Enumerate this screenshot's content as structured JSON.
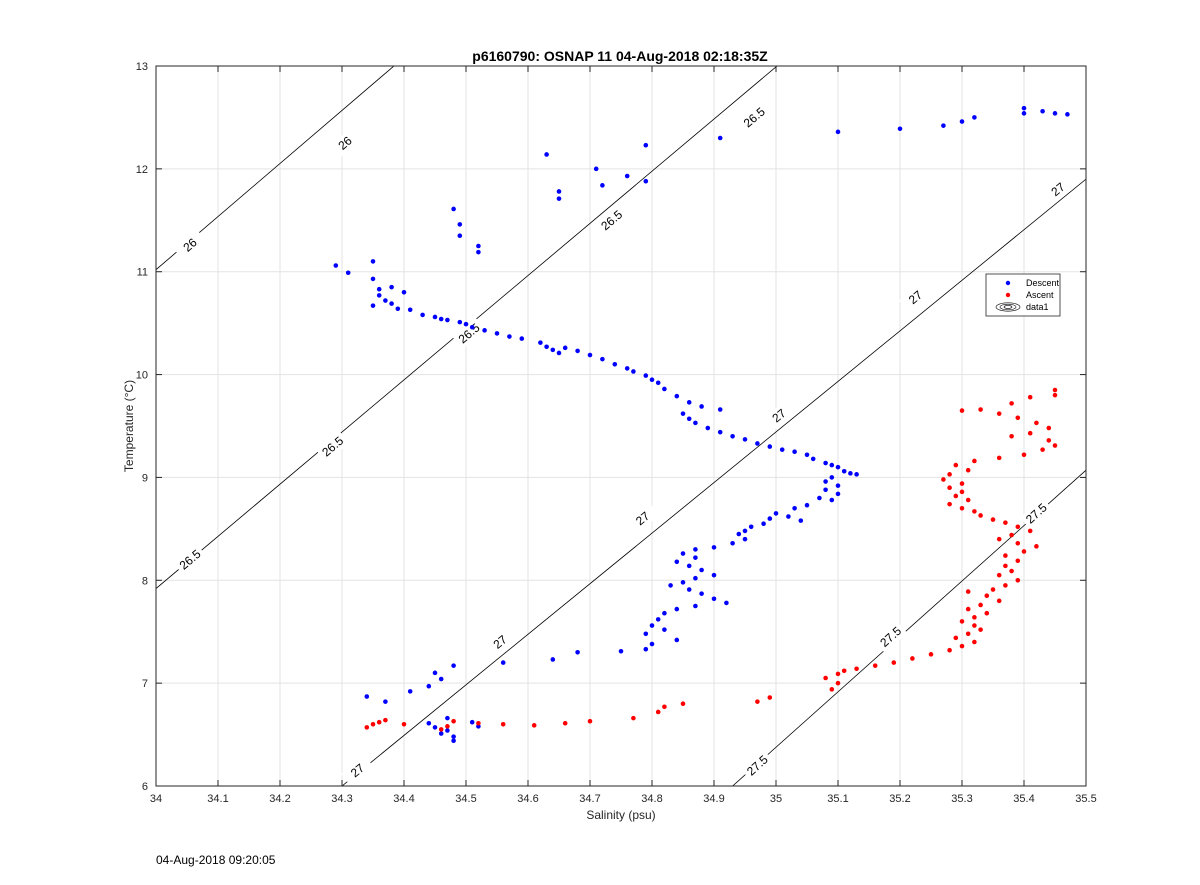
{
  "figure": {
    "title": "p6160790: OSNAP 11 04-Aug-2018 02:18:35Z",
    "timestamp": "04-Aug-2018 09:20:05"
  },
  "chart_data": {
    "type": "scatter",
    "title": "p6160790: OSNAP 11 04-Aug-2018 02:18:35Z",
    "xlabel": "Salinity (psu)",
    "ylabel": "Temperature (°C)",
    "xlim": [
      34,
      35.5
    ],
    "ylim": [
      6,
      13
    ],
    "xticks": [
      "34",
      "34.1",
      "34.2",
      "34.3",
      "34.4",
      "34.5",
      "34.6",
      "34.7",
      "34.8",
      "34.9",
      "35",
      "35.1",
      "35.2",
      "35.3",
      "35.4",
      "35.5"
    ],
    "yticks": [
      "6",
      "7",
      "8",
      "9",
      "10",
      "11",
      "12",
      "13"
    ],
    "grid": true,
    "legend": {
      "placement": "right",
      "entries": [
        {
          "label": "Descent",
          "color": "#0000ff",
          "marker": "dot"
        },
        {
          "label": "Ascent",
          "color": "#ff0000",
          "marker": "dot"
        },
        {
          "label": "data1",
          "color": "#000000",
          "marker": "contour"
        }
      ]
    },
    "contours": [
      {
        "level": 26,
        "label": "26",
        "points": [
          [
            34,
            11.02
          ],
          [
            34.5,
            13.6
          ]
        ],
        "label_positions": [
          [
            34.055,
            11.26
          ],
          [
            34.305,
            12.25
          ]
        ]
      },
      {
        "level": 26.5,
        "label": "26.5",
        "points": [
          [
            34,
            7.92
          ],
          [
            35.12,
            13.6
          ]
        ],
        "label_positions": [
          [
            34.055,
            8.2
          ],
          [
            34.285,
            9.3
          ],
          [
            34.505,
            10.4
          ],
          [
            34.735,
            11.5
          ],
          [
            34.965,
            12.5
          ]
        ]
      },
      {
        "level": 27,
        "label": "27",
        "points": [
          [
            34.3,
            6
          ],
          [
            35.5,
            11.9
          ]
        ],
        "label_positions": [
          [
            34.325,
            6.15
          ],
          [
            34.555,
            7.4
          ],
          [
            34.785,
            8.6
          ],
          [
            35.005,
            9.6
          ],
          [
            35.225,
            10.75
          ],
          [
            35.455,
            11.8
          ]
        ]
      },
      {
        "level": 27.5,
        "label": "27.5",
        "points": [
          [
            34.93,
            6
          ],
          [
            35.5,
            9.07
          ]
        ],
        "label_positions": [
          [
            34.97,
            6.2
          ],
          [
            35.185,
            7.45
          ],
          [
            35.42,
            8.65
          ]
        ]
      }
    ],
    "series": [
      {
        "name": "Descent",
        "color": "#0000ff",
        "points": [
          [
            35.47,
            12.53
          ],
          [
            35.45,
            12.54
          ],
          [
            35.43,
            12.56
          ],
          [
            35.4,
            12.54
          ],
          [
            35.4,
            12.59
          ],
          [
            35.32,
            12.5
          ],
          [
            35.3,
            12.46
          ],
          [
            35.27,
            12.42
          ],
          [
            35.2,
            12.39
          ],
          [
            35.1,
            12.36
          ],
          [
            34.91,
            12.3
          ],
          [
            34.79,
            12.23
          ],
          [
            34.63,
            12.14
          ],
          [
            34.71,
            12.0
          ],
          [
            34.76,
            11.93
          ],
          [
            34.79,
            11.88
          ],
          [
            34.72,
            11.84
          ],
          [
            34.65,
            11.78
          ],
          [
            34.65,
            11.71
          ],
          [
            34.48,
            11.61
          ],
          [
            34.49,
            11.46
          ],
          [
            34.49,
            11.35
          ],
          [
            34.52,
            11.25
          ],
          [
            34.52,
            11.19
          ],
          [
            34.29,
            11.06
          ],
          [
            34.35,
            11.1
          ],
          [
            34.31,
            10.99
          ],
          [
            34.35,
            10.93
          ],
          [
            34.36,
            10.83
          ],
          [
            34.36,
            10.77
          ],
          [
            34.4,
            10.8
          ],
          [
            34.38,
            10.85
          ],
          [
            34.37,
            10.72
          ],
          [
            34.35,
            10.67
          ],
          [
            34.38,
            10.69
          ],
          [
            34.39,
            10.64
          ],
          [
            34.41,
            10.63
          ],
          [
            34.43,
            10.58
          ],
          [
            34.45,
            10.56
          ],
          [
            34.46,
            10.54
          ],
          [
            34.47,
            10.53
          ],
          [
            34.49,
            10.51
          ],
          [
            34.5,
            10.49
          ],
          [
            34.51,
            10.46
          ],
          [
            34.53,
            10.43
          ],
          [
            34.55,
            10.4
          ],
          [
            34.57,
            10.37
          ],
          [
            34.59,
            10.35
          ],
          [
            34.62,
            10.31
          ],
          [
            34.63,
            10.27
          ],
          [
            34.64,
            10.24
          ],
          [
            34.65,
            10.21
          ],
          [
            34.66,
            10.26
          ],
          [
            34.68,
            10.23
          ],
          [
            34.7,
            10.19
          ],
          [
            34.72,
            10.15
          ],
          [
            34.74,
            10.1
          ],
          [
            34.76,
            10.06
          ],
          [
            34.77,
            10.03
          ],
          [
            34.79,
            9.99
          ],
          [
            34.8,
            9.95
          ],
          [
            34.81,
            9.92
          ],
          [
            34.82,
            9.86
          ],
          [
            34.84,
            9.79
          ],
          [
            34.86,
            9.73
          ],
          [
            34.88,
            9.69
          ],
          [
            34.91,
            9.66
          ],
          [
            34.85,
            9.62
          ],
          [
            34.86,
            9.57
          ],
          [
            34.87,
            9.53
          ],
          [
            34.89,
            9.48
          ],
          [
            34.91,
            9.44
          ],
          [
            34.93,
            9.4
          ],
          [
            34.95,
            9.37
          ],
          [
            34.97,
            9.33
          ],
          [
            34.99,
            9.3
          ],
          [
            35.01,
            9.27
          ],
          [
            35.03,
            9.25
          ],
          [
            35.05,
            9.22
          ],
          [
            35.06,
            9.18
          ],
          [
            35.08,
            9.14
          ],
          [
            35.09,
            9.12
          ],
          [
            35.1,
            9.1
          ],
          [
            35.11,
            9.06
          ],
          [
            35.12,
            9.04
          ],
          [
            35.13,
            9.03
          ],
          [
            35.09,
            9.0
          ],
          [
            35.08,
            8.96
          ],
          [
            35.1,
            8.92
          ],
          [
            35.08,
            8.88
          ],
          [
            35.1,
            8.84
          ],
          [
            35.07,
            8.8
          ],
          [
            35.09,
            8.78
          ],
          [
            35.05,
            8.73
          ],
          [
            35.03,
            8.7
          ],
          [
            35.0,
            8.65
          ],
          [
            35.02,
            8.62
          ],
          [
            35.04,
            8.58
          ],
          [
            34.99,
            8.6
          ],
          [
            34.98,
            8.55
          ],
          [
            34.96,
            8.52
          ],
          [
            34.95,
            8.48
          ],
          [
            34.94,
            8.45
          ],
          [
            34.95,
            8.4
          ],
          [
            34.93,
            8.36
          ],
          [
            34.9,
            8.32
          ],
          [
            34.87,
            8.3
          ],
          [
            34.85,
            8.26
          ],
          [
            34.87,
            8.22
          ],
          [
            34.84,
            8.18
          ],
          [
            34.86,
            8.14
          ],
          [
            34.88,
            8.1
          ],
          [
            34.9,
            8.05
          ],
          [
            34.87,
            8.02
          ],
          [
            34.85,
            7.98
          ],
          [
            34.83,
            7.95
          ],
          [
            34.86,
            7.91
          ],
          [
            34.88,
            7.87
          ],
          [
            34.9,
            7.82
          ],
          [
            34.92,
            7.78
          ],
          [
            34.87,
            7.75
          ],
          [
            34.84,
            7.72
          ],
          [
            34.82,
            7.68
          ],
          [
            34.81,
            7.62
          ],
          [
            34.8,
            7.56
          ],
          [
            34.82,
            7.52
          ],
          [
            34.79,
            7.48
          ],
          [
            34.84,
            7.42
          ],
          [
            34.8,
            7.38
          ],
          [
            34.79,
            7.33
          ],
          [
            34.75,
            7.31
          ],
          [
            34.68,
            7.3
          ],
          [
            34.64,
            7.23
          ],
          [
            34.56,
            7.2
          ],
          [
            34.48,
            7.17
          ],
          [
            34.45,
            7.1
          ],
          [
            34.46,
            7.04
          ],
          [
            34.44,
            6.97
          ],
          [
            34.41,
            6.92
          ],
          [
            34.34,
            6.87
          ],
          [
            34.37,
            6.82
          ],
          [
            34.47,
            6.66
          ],
          [
            34.45,
            6.57
          ],
          [
            34.47,
            6.54
          ],
          [
            34.46,
            6.51
          ],
          [
            34.48,
            6.48
          ],
          [
            34.48,
            6.44
          ],
          [
            34.52,
            6.58
          ],
          [
            34.51,
            6.62
          ],
          [
            34.44,
            6.61
          ]
        ]
      },
      {
        "name": "Ascent",
        "color": "#ff0000",
        "points": [
          [
            35.45,
            9.85
          ],
          [
            35.45,
            9.8
          ],
          [
            35.41,
            9.78
          ],
          [
            35.38,
            9.72
          ],
          [
            35.33,
            9.66
          ],
          [
            35.3,
            9.65
          ],
          [
            35.36,
            9.62
          ],
          [
            35.39,
            9.58
          ],
          [
            35.42,
            9.53
          ],
          [
            35.44,
            9.48
          ],
          [
            35.41,
            9.43
          ],
          [
            35.38,
            9.4
          ],
          [
            35.44,
            9.36
          ],
          [
            35.45,
            9.31
          ],
          [
            35.43,
            9.27
          ],
          [
            35.4,
            9.22
          ],
          [
            35.36,
            9.19
          ],
          [
            35.32,
            9.16
          ],
          [
            35.29,
            9.12
          ],
          [
            35.31,
            9.07
          ],
          [
            35.28,
            9.03
          ],
          [
            35.27,
            8.98
          ],
          [
            35.3,
            8.94
          ],
          [
            35.28,
            8.9
          ],
          [
            35.3,
            8.86
          ],
          [
            35.29,
            8.82
          ],
          [
            35.31,
            8.78
          ],
          [
            35.28,
            8.74
          ],
          [
            35.3,
            8.7
          ],
          [
            35.32,
            8.67
          ],
          [
            35.33,
            8.63
          ],
          [
            35.35,
            8.59
          ],
          [
            35.37,
            8.56
          ],
          [
            35.39,
            8.52
          ],
          [
            35.41,
            8.48
          ],
          [
            35.38,
            8.44
          ],
          [
            35.36,
            8.4
          ],
          [
            35.39,
            8.36
          ],
          [
            35.42,
            8.33
          ],
          [
            35.4,
            8.28
          ],
          [
            35.37,
            8.24
          ],
          [
            35.39,
            8.19
          ],
          [
            35.37,
            8.14
          ],
          [
            35.38,
            8.09
          ],
          [
            35.36,
            8.05
          ],
          [
            35.39,
            8.0
          ],
          [
            35.37,
            7.95
          ],
          [
            35.35,
            7.91
          ],
          [
            35.31,
            7.89
          ],
          [
            35.34,
            7.85
          ],
          [
            35.36,
            7.8
          ],
          [
            35.33,
            7.76
          ],
          [
            35.31,
            7.72
          ],
          [
            35.34,
            7.68
          ],
          [
            35.32,
            7.64
          ],
          [
            35.3,
            7.6
          ],
          [
            35.32,
            7.56
          ],
          [
            35.33,
            7.52
          ],
          [
            35.31,
            7.48
          ],
          [
            35.29,
            7.44
          ],
          [
            35.32,
            7.4
          ],
          [
            35.3,
            7.36
          ],
          [
            35.28,
            7.32
          ],
          [
            35.25,
            7.28
          ],
          [
            35.22,
            7.24
          ],
          [
            35.19,
            7.2
          ],
          [
            35.16,
            7.17
          ],
          [
            35.13,
            7.14
          ],
          [
            35.11,
            7.12
          ],
          [
            35.1,
            7.09
          ],
          [
            35.08,
            7.05
          ],
          [
            35.1,
            7.0
          ],
          [
            35.09,
            6.94
          ],
          [
            34.99,
            6.86
          ],
          [
            34.97,
            6.82
          ],
          [
            34.85,
            6.8
          ],
          [
            34.82,
            6.77
          ],
          [
            34.81,
            6.72
          ],
          [
            34.77,
            6.66
          ],
          [
            34.7,
            6.63
          ],
          [
            34.66,
            6.61
          ],
          [
            34.61,
            6.59
          ],
          [
            34.56,
            6.6
          ],
          [
            34.52,
            6.61
          ],
          [
            34.48,
            6.63
          ],
          [
            34.47,
            6.58
          ],
          [
            34.46,
            6.55
          ],
          [
            34.4,
            6.6
          ],
          [
            34.37,
            6.64
          ],
          [
            34.36,
            6.62
          ],
          [
            34.35,
            6.6
          ],
          [
            34.34,
            6.57
          ]
        ]
      }
    ]
  }
}
